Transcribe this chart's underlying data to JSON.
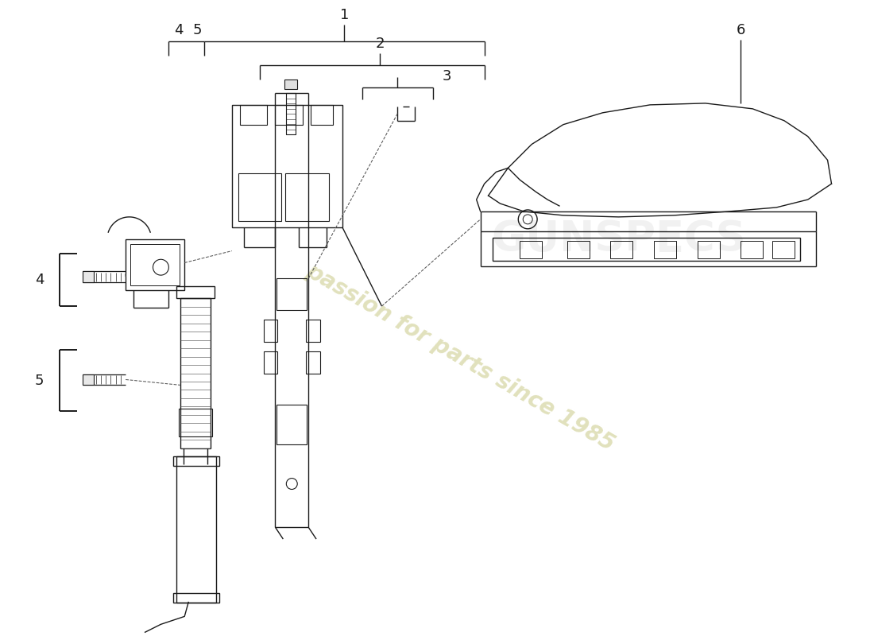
{
  "background_color": "#ffffff",
  "line_color": "#1a1a1a",
  "watermark_color": "#d4d4a0",
  "lw": 1.0
}
